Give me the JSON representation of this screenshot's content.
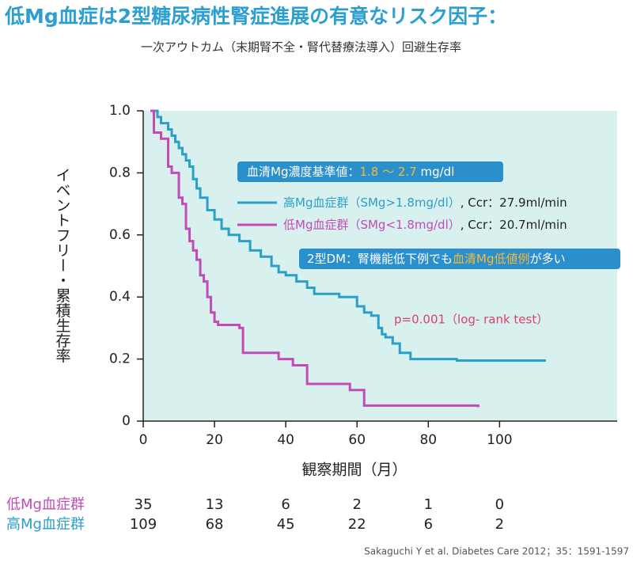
{
  "chart_data": {
    "type": "step",
    "title": "低Mg血症は2型糖尿病性腎症進展の有意なリスク因子：",
    "subtitle": "一次アウトカム（末期腎不全・腎代替療法導入）回避生存率",
    "y_label": "イベントフリー・累積生存率",
    "x_label": "観察期間（月）",
    "xlim": [
      0,
      133
    ],
    "ylim": [
      0,
      1
    ],
    "xticks": [
      0,
      20,
      40,
      60,
      80,
      100
    ],
    "yticks": [
      0,
      0.2,
      0.4,
      0.6,
      0.8,
      {
        "value": 1,
        "label": "1.0"
      }
    ],
    "background": "#d8f1ee",
    "series": [
      {
        "name": "高Mg血症群（SMg>1.8mg/dl）",
        "note": ", Ccr：27.9ml/min",
        "color": "#2a9fc9",
        "x": [
          2,
          4,
          5,
          7,
          8,
          9,
          10,
          11,
          12,
          13,
          14,
          15,
          16,
          18,
          20,
          22,
          24,
          27,
          30,
          33,
          36,
          38,
          40,
          43,
          46,
          48,
          55,
          60,
          62,
          64,
          66,
          67,
          68,
          70,
          72,
          75,
          88,
          113
        ],
        "values": [
          1.0,
          0.98,
          0.96,
          0.94,
          0.92,
          0.9,
          0.88,
          0.86,
          0.84,
          0.82,
          0.78,
          0.75,
          0.72,
          0.68,
          0.65,
          0.62,
          0.6,
          0.58,
          0.55,
          0.53,
          0.5,
          0.48,
          0.47,
          0.45,
          0.43,
          0.41,
          0.4,
          0.37,
          0.35,
          0.34,
          0.3,
          0.28,
          0.27,
          0.25,
          0.22,
          0.2,
          0.195,
          0.195
        ]
      },
      {
        "name": "低Mg血症群（SMg<1.8mg/dl）",
        "note": ", Ccr：20.7ml/min",
        "color": "#c24bb8",
        "x": [
          2,
          3,
          5,
          7,
          8,
          10,
          11,
          12,
          13,
          14,
          15,
          16,
          17,
          18,
          19,
          20,
          21,
          27,
          28,
          38,
          42,
          46,
          58,
          62,
          94
        ],
        "values": [
          1.0,
          0.93,
          0.91,
          0.82,
          0.8,
          0.72,
          0.7,
          0.62,
          0.58,
          0.55,
          0.52,
          0.47,
          0.45,
          0.4,
          0.35,
          0.32,
          0.31,
          0.3,
          0.22,
          0.2,
          0.18,
          0.12,
          0.1,
          0.05,
          0.045
        ]
      }
    ],
    "reference_box": [
      "血清Mg濃度基準値：",
      "1.8 ～ 2.7",
      " mg/dl"
    ],
    "note_box": [
      "2型DM：腎機能低下例でも",
      "血清Mg低値例",
      "が多い"
    ],
    "p_value": "p=0.001（log- rank test）",
    "risk_table": [
      {
        "name": "低Mg血症群",
        "color": "#c24bb8",
        "values": [
          35,
          13,
          6,
          2,
          1,
          0
        ]
      },
      {
        "name": "高Mg血症群",
        "color": "#2a9fc9",
        "values": [
          109,
          68,
          45,
          22,
          6,
          2
        ]
      }
    ],
    "citation": "Sakaguchi Y et al. Diabetes Care 2012；35：1591-1597"
  }
}
